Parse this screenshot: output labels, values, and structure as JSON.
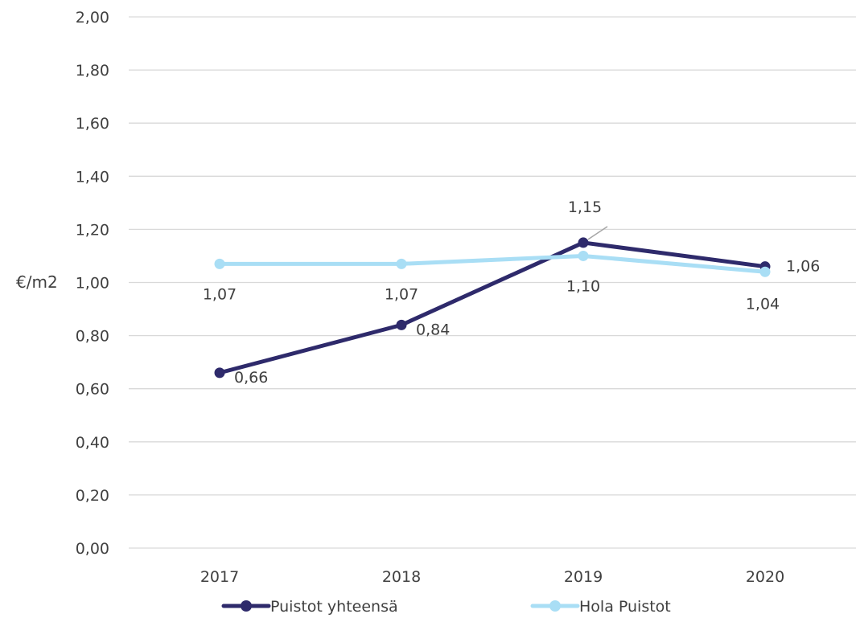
{
  "chart_data": {
    "type": "line",
    "title": "",
    "xlabel": "",
    "ylabel": "€/m2",
    "categories": [
      "2017",
      "2018",
      "2019",
      "2020"
    ],
    "ylim": [
      0,
      2
    ],
    "yticks": [
      "0,00",
      "0,20",
      "0,40",
      "0,60",
      "0,80",
      "1,00",
      "1,20",
      "1,40",
      "1,60",
      "1,80",
      "2,00"
    ],
    "grid": true,
    "legend_position": "bottom",
    "series": [
      {
        "name": "Puistot yhteensä",
        "values": [
          0.66,
          0.84,
          1.15,
          1.06
        ],
        "labels": [
          "0,66",
          "0,84",
          "1,15",
          "1,06"
        ],
        "color": "#2e2a6b"
      },
      {
        "name": "Hola Puistot",
        "values": [
          1.07,
          1.07,
          1.1,
          1.04
        ],
        "labels": [
          "1,07",
          "1,07",
          "1,10",
          "1,04"
        ],
        "color": "#a9def5"
      }
    ]
  }
}
